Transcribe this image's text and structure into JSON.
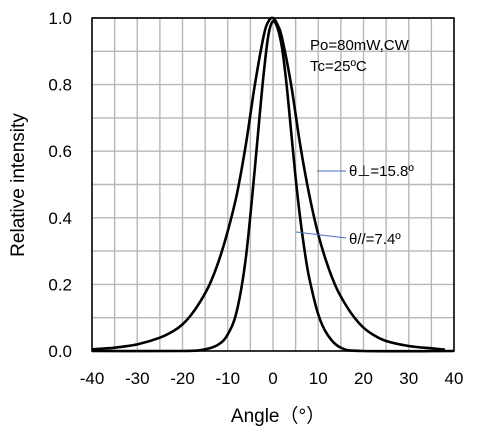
{
  "chart_data": {
    "type": "line",
    "xlabel": "Angle（°）",
    "ylabel": "Relative intensity",
    "xlim": [
      -40,
      40
    ],
    "ylim": [
      0,
      1.0
    ],
    "xticks": [
      "-40",
      "-30",
      "-20",
      "-10",
      "0",
      "10",
      "20",
      "30",
      "40"
    ],
    "yticks": [
      "0.0",
      "0.2",
      "0.4",
      "0.6",
      "0.8",
      "1.0"
    ],
    "grid": true,
    "conditions": [
      "Po=80mW,CW",
      "Tc=25ºC"
    ],
    "annotations": [
      "θ⊥=15.8º",
      "θ//=7.4º"
    ],
    "series": [
      {
        "x": [
          -40,
          -35,
          -30,
          -25,
          -22,
          -20,
          -18,
          -16,
          -14,
          -12,
          -10,
          -8,
          -6,
          -4,
          -2,
          -1,
          0,
          1,
          2,
          4,
          6,
          8,
          10,
          12,
          14,
          16,
          18,
          20,
          22,
          25,
          30,
          35,
          38
        ],
        "y": [
          0.005,
          0.01,
          0.02,
          0.04,
          0.06,
          0.08,
          0.11,
          0.15,
          0.2,
          0.27,
          0.36,
          0.47,
          0.62,
          0.8,
          0.95,
          0.99,
          1.0,
          0.98,
          0.94,
          0.8,
          0.62,
          0.47,
          0.35,
          0.26,
          0.19,
          0.14,
          0.1,
          0.07,
          0.05,
          0.03,
          0.015,
          0.008,
          0.004
        ]
      },
      {
        "x": [
          -40,
          -20,
          -15,
          -12,
          -10,
          -8,
          -6,
          -4,
          -3,
          -2,
          -1,
          0,
          1,
          2,
          3,
          4,
          5,
          6,
          7,
          8,
          10,
          12,
          15,
          20,
          40
        ],
        "y": [
          0.0,
          0.0,
          0.005,
          0.02,
          0.05,
          0.12,
          0.28,
          0.55,
          0.7,
          0.84,
          0.95,
          0.99,
          0.97,
          0.91,
          0.8,
          0.66,
          0.52,
          0.4,
          0.3,
          0.22,
          0.11,
          0.05,
          0.01,
          0.0,
          0.0
        ]
      }
    ]
  }
}
